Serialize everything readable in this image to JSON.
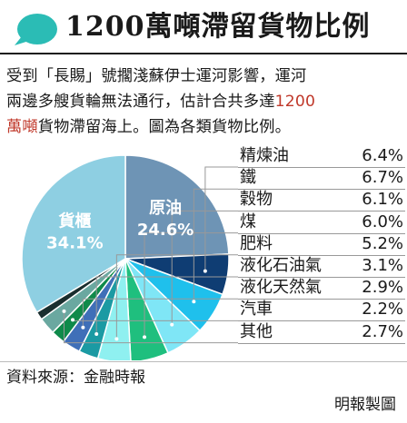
{
  "header": {
    "title": "1200萬噸滯留貨物比例"
  },
  "intro": {
    "line1": "受到「長賜」號擱淺蘇伊士運河影響，運河",
    "line2_pre": "兩邊多艘貨輪無法通行，估計合共多達",
    "line2_red": "1200",
    "line3_red": "萬噸",
    "line3_post": "貨物滯留海上。圖為各類貨物比例。"
  },
  "colors": {
    "accent": "#2bbcb5",
    "highlight": "#c0392b"
  },
  "chart_data": {
    "type": "pie",
    "slices": [
      {
        "label": "原油",
        "value": 24.6,
        "display": "24.6%",
        "color": "#6e94b5"
      },
      {
        "label": "精煉油",
        "value": 6.4,
        "display": "6.4%",
        "color": "#0f3d73"
      },
      {
        "label": "鐵",
        "value": 6.7,
        "display": "6.7%",
        "color": "#1fc0ec"
      },
      {
        "label": "穀物",
        "value": 6.1,
        "display": "6.1%",
        "color": "#7fe6f6"
      },
      {
        "label": "煤",
        "value": 6.0,
        "display": "6.0%",
        "color": "#1fbf7e"
      },
      {
        "label": "肥料",
        "value": 5.2,
        "display": "5.2%",
        "color": "#8ff0f0"
      },
      {
        "label": "液化石油氣",
        "value": 3.1,
        "display": "3.1%",
        "color": "#1b9aa3"
      },
      {
        "label": "液化天然氣",
        "value": 2.9,
        "display": "2.9%",
        "color": "#3f6fb8"
      },
      {
        "label": "汽車",
        "value": 2.2,
        "display": "2.2%",
        "color": "#0f8a4a"
      },
      {
        "label": "其他",
        "value": 2.7,
        "display": "2.7%",
        "color": "#6aa8a0"
      },
      {
        "label": "",
        "value": 1.3,
        "display": "",
        "color": "#1a2e2e"
      },
      {
        "label": "貨櫃",
        "value": 34.1,
        "display": "34.1%",
        "color": "#8ecfe2"
      }
    ]
  },
  "source": "資料來源：金融時報",
  "credit": "明報製圖"
}
